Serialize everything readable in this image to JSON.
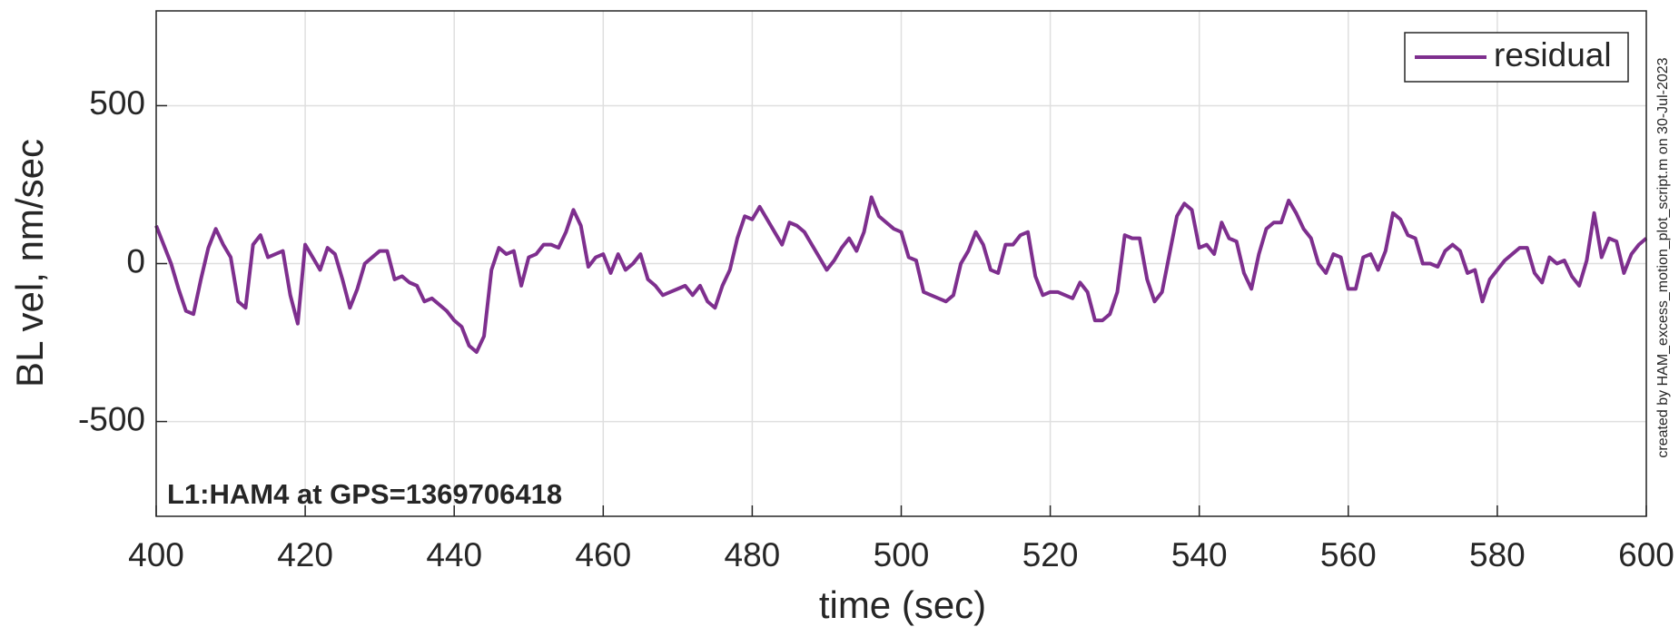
{
  "chart_data": {
    "type": "line",
    "xlabel": "time (sec)",
    "ylabel": "BL vel, nm/sec",
    "annotation": "L1:HAM4 at GPS=1369706418",
    "side_note": "created by HAM_excess_motion_plot_script.m on 30-Jul-2023",
    "xlim": [
      400,
      600
    ],
    "xticks": [
      400,
      420,
      440,
      460,
      480,
      500,
      520,
      540,
      560,
      580,
      600
    ],
    "ylim": [
      -800,
      800
    ],
    "yticks": [
      -500,
      0,
      500
    ],
    "grid": true,
    "legend": "upper right",
    "x": [
      400,
      401,
      402,
      403,
      404,
      405,
      406,
      407,
      408,
      409,
      410,
      411,
      412,
      413,
      414,
      415,
      416,
      417,
      418,
      419,
      420,
      421,
      422,
      423,
      424,
      425,
      426,
      427,
      428,
      429,
      430,
      431,
      432,
      433,
      434,
      435,
      436,
      437,
      438,
      439,
      440,
      441,
      442,
      443,
      444,
      445,
      446,
      447,
      448,
      449,
      450,
      451,
      452,
      453,
      454,
      455,
      456,
      457,
      458,
      459,
      460,
      461,
      462,
      463,
      464,
      465,
      466,
      467,
      468,
      469,
      470,
      471,
      472,
      473,
      474,
      475,
      476,
      477,
      478,
      479,
      480,
      481,
      482,
      483,
      484,
      485,
      486,
      487,
      488,
      489,
      490,
      491,
      492,
      493,
      494,
      495,
      496,
      497,
      498,
      499,
      500,
      501,
      502,
      503,
      504,
      505,
      506,
      507,
      508,
      509,
      510,
      511,
      512,
      513,
      514,
      515,
      516,
      517,
      518,
      519,
      520,
      521,
      522,
      523,
      524,
      525,
      526,
      527,
      528,
      529,
      530,
      531,
      532,
      533,
      534,
      535,
      536,
      537,
      538,
      539,
      540,
      541,
      542,
      543,
      544,
      545,
      546,
      547,
      548,
      549,
      550,
      551,
      552,
      553,
      554,
      555,
      556,
      557,
      558,
      559,
      560,
      561,
      562,
      563,
      564,
      565,
      566,
      567,
      568,
      569,
      570,
      571,
      572,
      573,
      574,
      575,
      576,
      577,
      578,
      579,
      580,
      581,
      582,
      583,
      584,
      585,
      586,
      587,
      588,
      589,
      590,
      591,
      592,
      593,
      594,
      595,
      596,
      597,
      598,
      599,
      600
    ],
    "series": [
      {
        "name": "residual",
        "color": "#7e2f8e",
        "values": [
          120,
          60,
          0,
          -80,
          -150,
          -160,
          -50,
          50,
          110,
          60,
          20,
          -120,
          -140,
          60,
          90,
          20,
          30,
          40,
          -100,
          -190,
          60,
          20,
          -20,
          50,
          30,
          -50,
          -140,
          -80,
          0,
          20,
          40,
          40,
          -50,
          -40,
          -60,
          -70,
          -120,
          -110,
          -130,
          -150,
          -180,
          -200,
          -260,
          -280,
          -230,
          -20,
          50,
          30,
          40,
          -70,
          20,
          30,
          60,
          60,
          50,
          100,
          170,
          120,
          -10,
          20,
          30,
          -30,
          30,
          -20,
          0,
          30,
          -50,
          -70,
          -100,
          -90,
          -80,
          -70,
          -100,
          -70,
          -120,
          -140,
          -70,
          -20,
          80,
          150,
          140,
          180,
          140,
          100,
          60,
          130,
          120,
          100,
          60,
          20,
          -20,
          10,
          50,
          80,
          40,
          100,
          210,
          150,
          130,
          110,
          100,
          20,
          10,
          -90,
          -100,
          -110,
          -120,
          -100,
          0,
          40,
          100,
          60,
          -20,
          -30,
          60,
          60,
          90,
          100,
          -40,
          -100,
          -90,
          -90,
          -100,
          -110,
          -60,
          -90,
          -180,
          -180,
          -160,
          -90,
          90,
          80,
          80,
          -50,
          -120,
          -90,
          30,
          150,
          190,
          170,
          50,
          60,
          30,
          130,
          80,
          70,
          -30,
          -80,
          30,
          110,
          130,
          130,
          200,
          160,
          110,
          80,
          0,
          -30,
          30,
          20,
          -80,
          -80,
          20,
          30,
          -20,
          40,
          160,
          140,
          90,
          80,
          0,
          0,
          -10,
          40,
          60,
          40,
          -30,
          -20,
          -120,
          -50,
          -20,
          10,
          30,
          50,
          50,
          -30,
          -60,
          20,
          0,
          10,
          -40,
          -70,
          10,
          160,
          20,
          80,
          70,
          -30,
          30,
          60,
          80
        ]
      }
    ]
  }
}
